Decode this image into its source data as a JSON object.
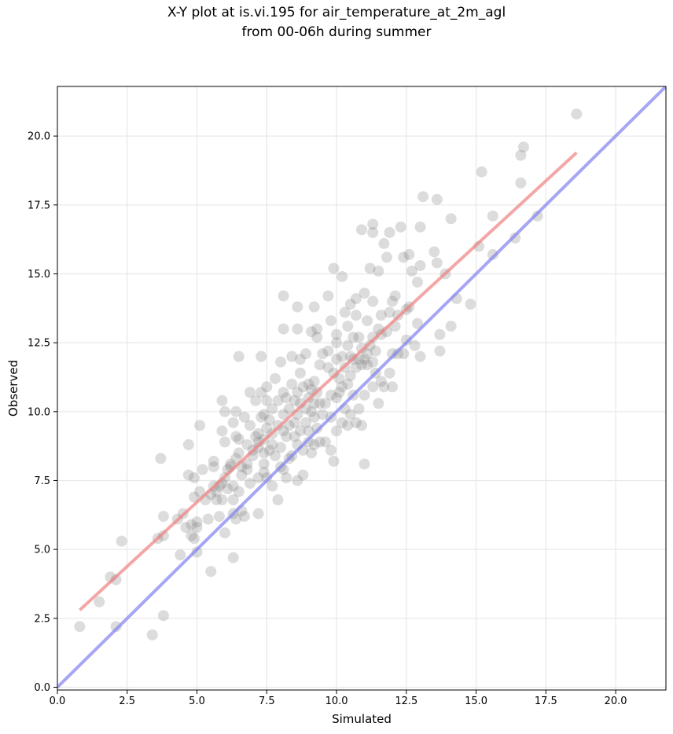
{
  "chart_data": {
    "type": "scatter",
    "title_line1": "X-Y plot at is.vi.195 for air_temperature_at_2m_agl",
    "title_line2": "from 00-06h during summer",
    "xlabel": "Simulated",
    "ylabel": "Observed",
    "xlim": [
      0.0,
      21.8
    ],
    "ylim": [
      -0.1,
      21.8
    ],
    "xticks": [
      "0.0",
      "2.5",
      "5.0",
      "7.5",
      "10.0",
      "12.5",
      "15.0",
      "17.5",
      "20.0"
    ],
    "yticks": [
      "0.0",
      "2.5",
      "5.0",
      "7.5",
      "10.0",
      "12.5",
      "15.0",
      "17.5",
      "20.0"
    ],
    "grid": true,
    "point_color": "#808080",
    "fit_line": {
      "color": "#f08080",
      "x": [
        0.8,
        18.6
      ],
      "y": [
        2.8,
        19.4
      ]
    },
    "identity_line": {
      "color": "#8080f0",
      "x": [
        0.0,
        21.8
      ],
      "y": [
        0.0,
        21.8
      ]
    },
    "points": [
      [
        0.8,
        2.2
      ],
      [
        1.5,
        3.1
      ],
      [
        1.9,
        4.0
      ],
      [
        2.1,
        3.9
      ],
      [
        2.1,
        2.2
      ],
      [
        2.3,
        5.3
      ],
      [
        3.4,
        1.9
      ],
      [
        3.6,
        5.4
      ],
      [
        3.7,
        8.3
      ],
      [
        3.8,
        5.5
      ],
      [
        3.8,
        6.2
      ],
      [
        3.8,
        2.6
      ],
      [
        4.3,
        6.1
      ],
      [
        4.4,
        4.8
      ],
      [
        4.5,
        6.3
      ],
      [
        4.6,
        5.8
      ],
      [
        4.7,
        7.7
      ],
      [
        4.7,
        8.8
      ],
      [
        4.8,
        5.5
      ],
      [
        4.8,
        5.9
      ],
      [
        4.9,
        6.9
      ],
      [
        4.9,
        7.6
      ],
      [
        4.9,
        5.4
      ],
      [
        5.0,
        4.9
      ],
      [
        5.0,
        5.8
      ],
      [
        5.0,
        6.0
      ],
      [
        5.1,
        7.1
      ],
      [
        5.1,
        9.5
      ],
      [
        5.2,
        7.9
      ],
      [
        5.3,
        6.8
      ],
      [
        5.4,
        6.1
      ],
      [
        5.5,
        7.0
      ],
      [
        5.5,
        4.2
      ],
      [
        5.6,
        7.3
      ],
      [
        5.6,
        8.0
      ],
      [
        5.6,
        8.2
      ],
      [
        5.7,
        6.8
      ],
      [
        5.7,
        7.1
      ],
      [
        5.8,
        7.3
      ],
      [
        5.8,
        6.2
      ],
      [
        5.9,
        6.8
      ],
      [
        5.9,
        7.4
      ],
      [
        5.9,
        9.3
      ],
      [
        5.9,
        10.4
      ],
      [
        6.0,
        8.9
      ],
      [
        6.0,
        5.6
      ],
      [
        6.0,
        7.6
      ],
      [
        6.0,
        10.0
      ],
      [
        6.1,
        7.2
      ],
      [
        6.1,
        7.9
      ],
      [
        6.2,
        8.0
      ],
      [
        6.2,
        8.1
      ],
      [
        6.3,
        4.7
      ],
      [
        6.3,
        6.3
      ],
      [
        6.3,
        6.8
      ],
      [
        6.3,
        7.3
      ],
      [
        6.3,
        9.6
      ],
      [
        6.4,
        6.1
      ],
      [
        6.4,
        8.3
      ],
      [
        6.4,
        9.1
      ],
      [
        6.4,
        10.0
      ],
      [
        6.5,
        7.1
      ],
      [
        6.5,
        8.5
      ],
      [
        6.5,
        9.0
      ],
      [
        6.5,
        12.0
      ],
      [
        6.6,
        6.4
      ],
      [
        6.6,
        7.7
      ],
      [
        6.6,
        8.0
      ],
      [
        6.7,
        9.8
      ],
      [
        6.7,
        6.2
      ],
      [
        6.8,
        8.1
      ],
      [
        6.8,
        8.8
      ],
      [
        6.8,
        7.9
      ],
      [
        6.9,
        7.4
      ],
      [
        6.9,
        9.5
      ],
      [
        6.9,
        10.7
      ],
      [
        7.0,
        8.6
      ],
      [
        7.0,
        8.4
      ],
      [
        7.1,
        9.1
      ],
      [
        7.1,
        10.4
      ],
      [
        7.2,
        7.6
      ],
      [
        7.2,
        8.9
      ],
      [
        7.2,
        8.7
      ],
      [
        7.2,
        9.2
      ],
      [
        7.2,
        6.3
      ],
      [
        7.3,
        10.7
      ],
      [
        7.3,
        12.0
      ],
      [
        7.3,
        9.8
      ],
      [
        7.4,
        7.8
      ],
      [
        7.4,
        8.1
      ],
      [
        7.4,
        8.5
      ],
      [
        7.4,
        9.0
      ],
      [
        7.4,
        9.9
      ],
      [
        7.5,
        7.6
      ],
      [
        7.5,
        9.4
      ],
      [
        7.5,
        10.4
      ],
      [
        7.5,
        10.9
      ],
      [
        7.6,
        8.6
      ],
      [
        7.6,
        9.7
      ],
      [
        7.7,
        7.3
      ],
      [
        7.7,
        8.8
      ],
      [
        7.7,
        9.2
      ],
      [
        7.7,
        10.1
      ],
      [
        7.8,
        11.2
      ],
      [
        7.8,
        8.4
      ],
      [
        7.9,
        9.5
      ],
      [
        7.9,
        10.4
      ],
      [
        7.9,
        6.8
      ],
      [
        8.0,
        8.0
      ],
      [
        8.0,
        8.7
      ],
      [
        8.0,
        11.8
      ],
      [
        8.1,
        7.9
      ],
      [
        8.1,
        9.3
      ],
      [
        8.1,
        9.9
      ],
      [
        8.1,
        10.7
      ],
      [
        8.1,
        14.2
      ],
      [
        8.1,
        13.0
      ],
      [
        8.2,
        7.6
      ],
      [
        8.2,
        9.1
      ],
      [
        8.2,
        10.5
      ],
      [
        8.3,
        8.3
      ],
      [
        8.3,
        9.5
      ],
      [
        8.3,
        10.1
      ],
      [
        8.4,
        8.4
      ],
      [
        8.4,
        11.0
      ],
      [
        8.4,
        12.0
      ],
      [
        8.5,
        9.1
      ],
      [
        8.5,
        9.6
      ],
      [
        8.5,
        10.4
      ],
      [
        8.6,
        7.5
      ],
      [
        8.6,
        8.8
      ],
      [
        8.6,
        9.9
      ],
      [
        8.6,
        10.7
      ],
      [
        8.6,
        13.0
      ],
      [
        8.6,
        13.8
      ],
      [
        8.7,
        9.3
      ],
      [
        8.7,
        10.3
      ],
      [
        8.7,
        11.4
      ],
      [
        8.7,
        11.9
      ],
      [
        8.8,
        8.6
      ],
      [
        8.8,
        10.9
      ],
      [
        8.8,
        7.7
      ],
      [
        8.9,
        9.6
      ],
      [
        8.9,
        10.1
      ],
      [
        8.9,
        12.1
      ],
      [
        9.0,
        8.9
      ],
      [
        9.0,
        10.5
      ],
      [
        9.0,
        11.0
      ],
      [
        9.0,
        9.3
      ],
      [
        9.1,
        8.5
      ],
      [
        9.1,
        10.0
      ],
      [
        9.1,
        10.8
      ],
      [
        9.1,
        12.9
      ],
      [
        9.2,
        8.8
      ],
      [
        9.2,
        9.8
      ],
      [
        9.2,
        10.3
      ],
      [
        9.2,
        11.1
      ],
      [
        9.2,
        13.8
      ],
      [
        9.3,
        9.4
      ],
      [
        9.3,
        10.7
      ],
      [
        9.3,
        12.7
      ],
      [
        9.3,
        13.0
      ],
      [
        9.4,
        8.9
      ],
      [
        9.4,
        10.3
      ],
      [
        9.4,
        11.7
      ],
      [
        9.5,
        12.1
      ],
      [
        9.5,
        9.9
      ],
      [
        9.6,
        8.9
      ],
      [
        9.6,
        10.3
      ],
      [
        9.7,
        11.6
      ],
      [
        9.7,
        12.2
      ],
      [
        9.7,
        14.2
      ],
      [
        9.8,
        8.6
      ],
      [
        9.8,
        9.8
      ],
      [
        9.8,
        10.6
      ],
      [
        9.8,
        13.3
      ],
      [
        9.9,
        8.2
      ],
      [
        9.9,
        11.4
      ],
      [
        9.9,
        15.2
      ],
      [
        10.0,
        9.3
      ],
      [
        10.0,
        10.5
      ],
      [
        10.0,
        11.9
      ],
      [
        10.0,
        12.8
      ],
      [
        10.0,
        12.5
      ],
      [
        10.1,
        10.7
      ],
      [
        10.1,
        11.2
      ],
      [
        10.2,
        9.6
      ],
      [
        10.2,
        10.9
      ],
      [
        10.2,
        12.0
      ],
      [
        10.2,
        14.9
      ],
      [
        10.3,
        10.1
      ],
      [
        10.3,
        11.6
      ],
      [
        10.3,
        13.6
      ],
      [
        10.4,
        9.5
      ],
      [
        10.4,
        11.0
      ],
      [
        10.4,
        12.4
      ],
      [
        10.4,
        13.1
      ],
      [
        10.5,
        9.9
      ],
      [
        10.5,
        11.3
      ],
      [
        10.5,
        12.0
      ],
      [
        10.5,
        13.9
      ],
      [
        10.6,
        10.6
      ],
      [
        10.6,
        11.9
      ],
      [
        10.6,
        12.7
      ],
      [
        10.7,
        9.6
      ],
      [
        10.7,
        11.6
      ],
      [
        10.7,
        13.5
      ],
      [
        10.7,
        14.1
      ],
      [
        10.8,
        10.1
      ],
      [
        10.8,
        11.9
      ],
      [
        10.8,
        12.7
      ],
      [
        10.9,
        9.5
      ],
      [
        10.9,
        11.7
      ],
      [
        10.9,
        12.3
      ],
      [
        10.9,
        16.6
      ],
      [
        11.0,
        8.1
      ],
      [
        11.0,
        10.6
      ],
      [
        11.0,
        11.9
      ],
      [
        11.0,
        14.3
      ],
      [
        11.1,
        12.1
      ],
      [
        11.1,
        11.7
      ],
      [
        11.1,
        13.3
      ],
      [
        11.2,
        12.4
      ],
      [
        11.2,
        15.2
      ],
      [
        11.3,
        10.9
      ],
      [
        11.3,
        11.8
      ],
      [
        11.3,
        12.7
      ],
      [
        11.3,
        14.0
      ],
      [
        11.3,
        16.5
      ],
      [
        11.3,
        16.8
      ],
      [
        11.4,
        11.4
      ],
      [
        11.4,
        12.2
      ],
      [
        11.5,
        13.0
      ],
      [
        11.5,
        15.1
      ],
      [
        11.5,
        10.3
      ],
      [
        11.6,
        11.1
      ],
      [
        11.6,
        12.8
      ],
      [
        11.6,
        13.5
      ],
      [
        11.7,
        16.1
      ],
      [
        11.7,
        10.9
      ],
      [
        11.8,
        12.9
      ],
      [
        11.8,
        15.6
      ],
      [
        11.9,
        13.6
      ],
      [
        11.9,
        11.4
      ],
      [
        11.9,
        16.5
      ],
      [
        12.0,
        12.1
      ],
      [
        12.0,
        14.0
      ],
      [
        12.0,
        10.9
      ],
      [
        12.1,
        13.1
      ],
      [
        12.1,
        14.2
      ],
      [
        12.2,
        12.1
      ],
      [
        12.2,
        13.5
      ],
      [
        12.3,
        16.7
      ],
      [
        12.4,
        12.1
      ],
      [
        12.4,
        15.6
      ],
      [
        12.5,
        13.7
      ],
      [
        12.5,
        12.6
      ],
      [
        12.6,
        15.7
      ],
      [
        12.6,
        13.8
      ],
      [
        12.7,
        15.1
      ],
      [
        12.8,
        12.4
      ],
      [
        12.9,
        14.7
      ],
      [
        12.9,
        13.2
      ],
      [
        13.0,
        12.0
      ],
      [
        13.0,
        15.3
      ],
      [
        13.0,
        16.7
      ],
      [
        13.1,
        17.8
      ],
      [
        13.5,
        15.8
      ],
      [
        13.6,
        15.4
      ],
      [
        13.6,
        17.7
      ],
      [
        13.7,
        12.2
      ],
      [
        13.7,
        12.8
      ],
      [
        13.9,
        15.0
      ],
      [
        14.1,
        13.1
      ],
      [
        14.1,
        17.0
      ],
      [
        14.3,
        14.1
      ],
      [
        14.8,
        13.9
      ],
      [
        15.1,
        16.0
      ],
      [
        15.2,
        18.7
      ],
      [
        15.6,
        15.7
      ],
      [
        15.6,
        17.1
      ],
      [
        16.4,
        16.3
      ],
      [
        16.6,
        18.3
      ],
      [
        16.6,
        19.3
      ],
      [
        16.7,
        19.6
      ],
      [
        17.2,
        17.1
      ],
      [
        18.6,
        20.8
      ]
    ]
  }
}
